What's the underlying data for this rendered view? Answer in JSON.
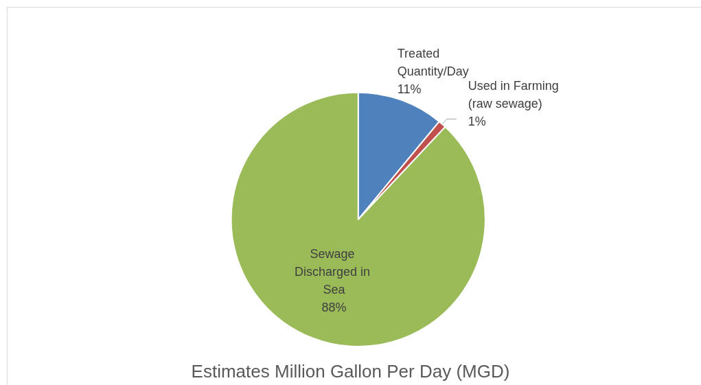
{
  "chart_data": {
    "type": "pie",
    "title": "Estimates Million Gallon Per Day (MGD)",
    "categories": [
      "Treated Quantity/Day",
      "Used in Farming (raw sewage)",
      "Sewage Discharged in Sea"
    ],
    "values": [
      11,
      1,
      88
    ],
    "colors": [
      "#4f81bd",
      "#c0504d",
      "#9bbb59"
    ],
    "value_labels": [
      "11%",
      "1%",
      "88%"
    ],
    "legend": false
  }
}
